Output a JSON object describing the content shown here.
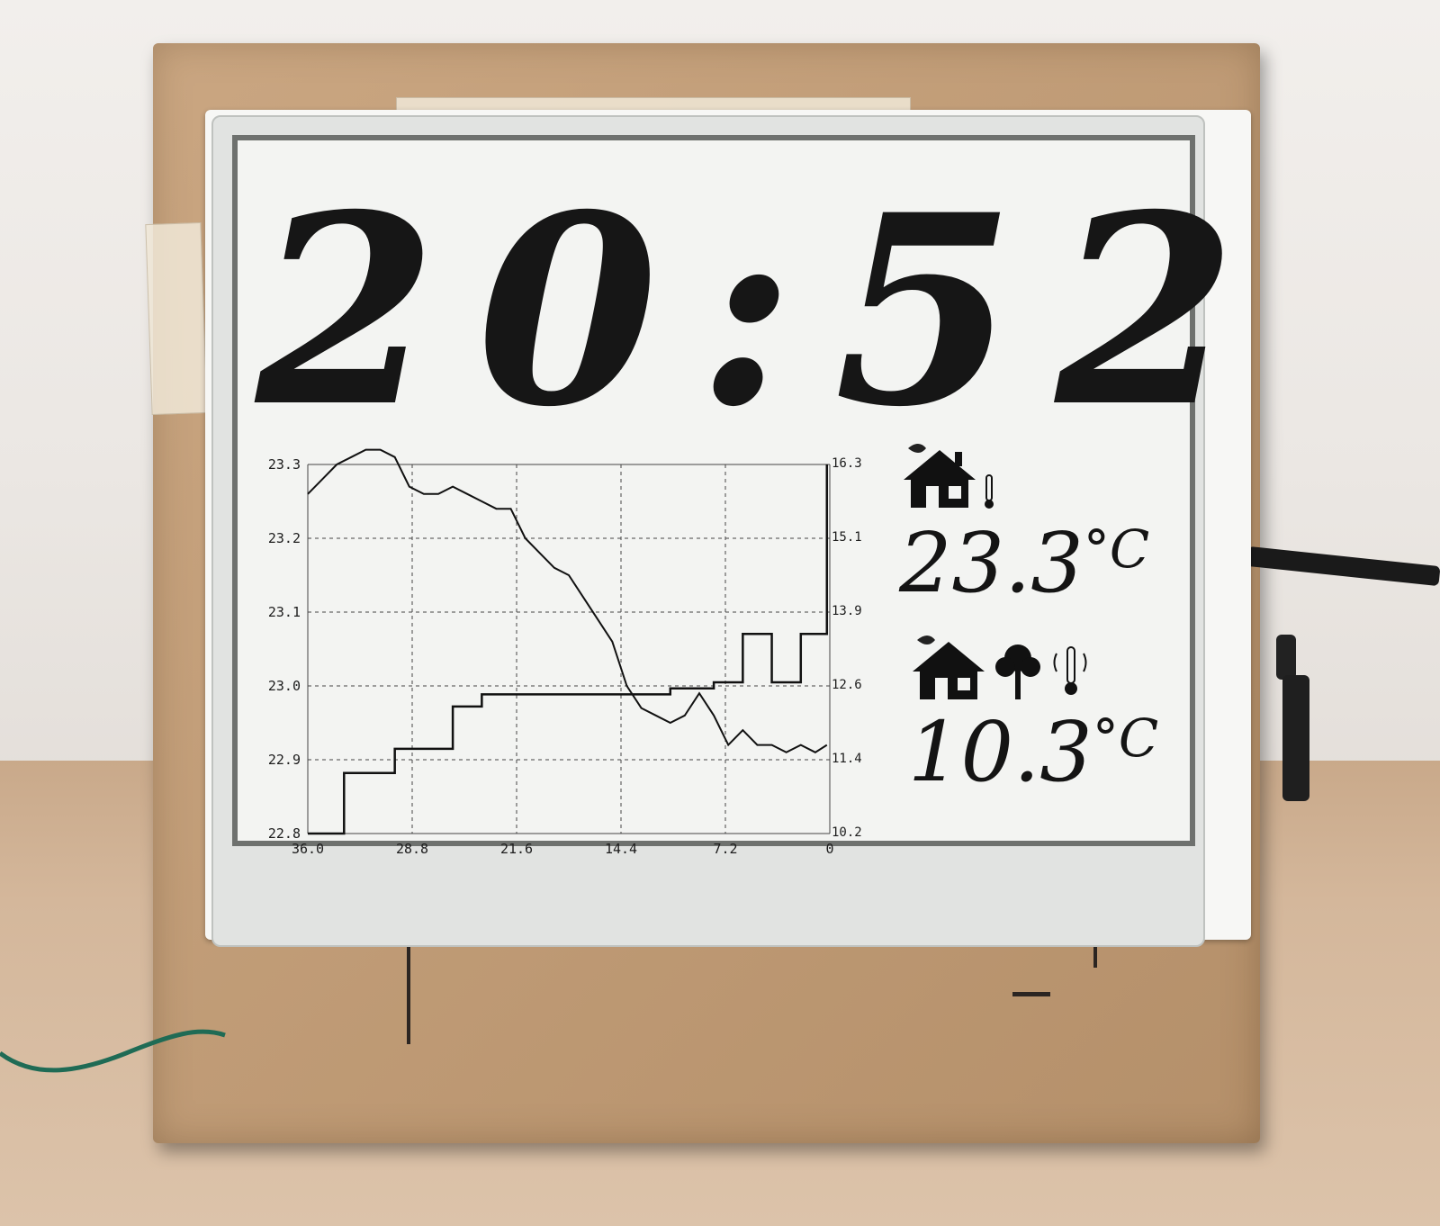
{
  "display": {
    "clock": "20:52",
    "indoor": {
      "value": "23.3",
      "unit": "°C"
    },
    "outdoor": {
      "value": "10.3",
      "unit": "°C"
    }
  },
  "chart_data": {
    "type": "line",
    "x_tick_labels": [
      "36.0",
      "28.8",
      "21.6",
      "14.4",
      "7.2",
      "0"
    ],
    "left_y_tick_labels": [
      "23.3",
      "23.2",
      "23.1",
      "23.0",
      "22.9",
      "22.8"
    ],
    "right_y_tick_labels": [
      "16.3",
      "15.1",
      "13.9",
      "12.6",
      "11.4",
      "10.2"
    ],
    "xlim": [
      36.0,
      0
    ],
    "left_ylim": [
      22.8,
      23.3
    ],
    "right_ylim": [
      10.2,
      16.3
    ],
    "grid": true,
    "series": [
      {
        "axis": "left",
        "x": [
          36.0,
          35.0,
          34.0,
          33.0,
          32.0,
          31.0,
          30.0,
          29.0,
          28.0,
          27.0,
          26.0,
          25.0,
          24.0,
          23.0,
          22.0,
          21.0,
          20.0,
          19.0,
          18.0,
          17.0,
          16.0,
          15.0,
          14.0,
          13.0,
          12.0,
          11.0,
          10.0,
          9.0,
          8.0,
          7.0,
          6.0,
          5.0,
          4.0,
          3.0,
          2.0,
          1.0,
          0.2
        ],
        "values": [
          23.26,
          23.28,
          23.3,
          23.31,
          23.32,
          23.32,
          23.31,
          23.27,
          23.26,
          23.26,
          23.27,
          23.26,
          23.25,
          23.24,
          23.24,
          23.2,
          23.18,
          23.16,
          23.15,
          23.12,
          23.09,
          23.06,
          23.0,
          22.97,
          22.96,
          22.95,
          22.96,
          22.99,
          22.96,
          22.92,
          22.94,
          22.92,
          22.92,
          22.91,
          22.92,
          22.91,
          22.92
        ]
      },
      {
        "axis": "right",
        "x": [
          36.0,
          34.0,
          33.5,
          31.0,
          30.0,
          27.0,
          26.0,
          24.0,
          20.0,
          16.0,
          12.0,
          11.0,
          9.0,
          8.0,
          6.0,
          4.0,
          2.0,
          0.2
        ],
        "values": [
          10.2,
          10.2,
          11.2,
          11.2,
          11.6,
          11.6,
          12.3,
          12.5,
          12.5,
          12.5,
          12.5,
          12.6,
          12.6,
          12.7,
          13.5,
          12.7,
          13.5,
          16.3
        ]
      }
    ]
  }
}
